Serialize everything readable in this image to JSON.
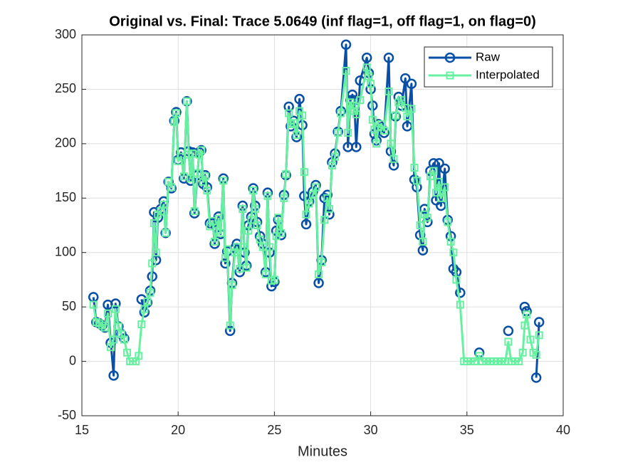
{
  "chart_data": {
    "type": "line",
    "title": "Original vs. Final: Trace 5.0649 (inf flag=1, off flag=1, on flag=0)",
    "x_label": "Minutes",
    "xlim": [
      15,
      40
    ],
    "xticks": [
      15,
      20,
      25,
      30,
      35,
      40
    ],
    "ylim": [
      -50,
      300
    ],
    "yticks": [
      -50,
      0,
      50,
      100,
      150,
      200,
      250,
      300
    ],
    "grid": true,
    "legend": "top-right",
    "x": [
      15.6,
      15.75,
      15.9,
      16.05,
      16.2,
      16.35,
      16.5,
      16.65,
      16.75,
      16.9,
      17.05,
      17.2,
      17.35,
      17.5,
      17.65,
      17.8,
      17.95,
      18.1,
      18.25,
      18.4,
      18.55,
      18.65,
      18.75,
      18.85,
      18.95,
      19.1,
      19.25,
      19.35,
      19.5,
      19.65,
      19.8,
      19.9,
      20.0,
      20.15,
      20.3,
      20.45,
      20.55,
      20.65,
      20.75,
      20.85,
      21.0,
      21.1,
      21.2,
      21.3,
      21.4,
      21.5,
      21.65,
      21.8,
      21.9,
      22.0,
      22.1,
      22.2,
      22.35,
      22.45,
      22.55,
      22.7,
      22.8,
      22.95,
      23.05,
      23.2,
      23.35,
      23.45,
      23.55,
      23.65,
      23.8,
      23.9,
      24.0,
      24.1,
      24.25,
      24.4,
      24.55,
      24.65,
      24.75,
      24.85,
      25.0,
      25.1,
      25.2,
      25.35,
      25.5,
      25.6,
      25.75,
      25.85,
      26.0,
      26.15,
      26.3,
      26.45,
      26.55,
      26.65,
      26.8,
      27.0,
      27.15,
      27.3,
      27.45,
      27.6,
      27.75,
      27.85,
      28.0,
      28.15,
      28.3,
      28.45,
      28.72,
      28.82,
      28.95,
      29.05,
      29.15,
      29.25,
      29.45,
      29.8,
      29.9,
      30.0,
      30.1,
      30.2,
      30.3,
      30.4,
      30.55,
      30.7,
      30.94,
      31.05,
      31.2,
      31.3,
      31.45,
      31.6,
      31.8,
      31.9,
      32.12,
      32.27,
      32.4,
      32.57,
      32.71,
      32.8,
      32.95,
      33.1,
      33.27,
      33.4,
      33.55,
      33.65,
      33.85,
      34.0,
      34.16,
      34.3,
      34.45,
      34.65,
      34.85,
      35.0,
      35.2,
      35.4,
      35.64,
      35.8,
      36.0,
      36.2,
      36.4,
      36.6,
      36.8,
      37.0,
      37.15,
      37.3,
      37.5,
      37.7,
      37.9,
      38.0,
      38.1,
      38.3,
      38.45,
      38.6,
      38.75
    ],
    "series": [
      {
        "name": "Raw",
        "color": "#0a4fa6",
        "marker": "circle",
        "values": [
          59,
          36,
          35,
          33,
          31,
          52,
          17,
          -13,
          53,
          32,
          25,
          21,
          null,
          null,
          null,
          null,
          null,
          57,
          45,
          54,
          65,
          78,
          137,
          93,
          132,
          140,
          147,
          118,
          165,
          159,
          221,
          229,
          185,
          192,
          168,
          239,
          193,
          166,
          192,
          136,
          171,
          192,
          194,
          163,
          171,
          160,
          127,
          127,
          108,
          123,
          133,
          117,
          168,
          90,
          101,
          28,
          72,
          104,
          108,
          82,
          143,
          100,
          88,
          125,
          133,
          159,
          143,
          128,
          115,
          108,
          82,
          155,
          100,
          69,
          73,
          120,
          130,
          116,
          153,
          171,
          234,
          216,
          221,
          206,
          241,
          217,
          152,
          126,
          147,
          156,
          162,
          72,
          93,
          150,
          153,
          135,
          183,
          191,
          211,
          230,
          291,
          197,
          240,
          245,
          240,
          197,
          258,
          279,
          265,
          250,
          235,
          209,
          203,
          218,
          215,
          210,
          279,
          193,
          180,
          225,
          243,
          235,
          260,
          216,
          255,
          167,
          160,
          116,
          102,
          140,
          128,
          175,
          182,
          148,
          182,
          143,
          177,
          130,
          115,
          85,
          82,
          63,
          null,
          null,
          null,
          null,
          8,
          null,
          null,
          null,
          null,
          null,
          null,
          null,
          28,
          null,
          null,
          null,
          null,
          50,
          46,
          null,
          null,
          -15,
          36
        ]
      },
      {
        "name": "Interpolated",
        "color": "#66f0a0",
        "marker": "square",
        "values": [
          52,
          36,
          35,
          33,
          31,
          44,
          13,
          20,
          48,
          32,
          25,
          20,
          8,
          0,
          0,
          0,
          5,
          34,
          48,
          55,
          63,
          90,
          127,
          100,
          135,
          138,
          144,
          118,
          165,
          160,
          220,
          228,
          184,
          188,
          170,
          239,
          190,
          168,
          191,
          138,
          173,
          190,
          194,
          165,
          170,
          157,
          124,
          129,
          110,
          120,
          131,
          118,
          166,
          95,
          103,
          33,
          70,
          100,
          105,
          85,
          140,
          105,
          86,
          120,
          130,
          157,
          140,
          125,
          112,
          105,
          80,
          152,
          105,
          74,
          75,
          115,
          132,
          118,
          150,
          172,
          228,
          218,
          219,
          208,
          230,
          226,
          174,
          135,
          145,
          153,
          160,
          80,
          91,
          130,
          150,
          140,
          180,
          188,
          210,
          228,
          267,
          210,
          238,
          235,
          230,
          227,
          240,
          270,
          262,
          255,
          222,
          213,
          200,
          215,
          218,
          212,
          248,
          200,
          186,
          226,
          238,
          240,
          233,
          225,
          232,
          178,
          166,
          125,
          110,
          135,
          132,
          170,
          175,
          155,
          165,
          150,
          160,
          128,
          110,
          100,
          75,
          52,
          0,
          0,
          0,
          0,
          5,
          0,
          0,
          0,
          0,
          0,
          0,
          0,
          18,
          0,
          0,
          0,
          8,
          33,
          43,
          20,
          8,
          6,
          24
        ]
      }
    ]
  }
}
